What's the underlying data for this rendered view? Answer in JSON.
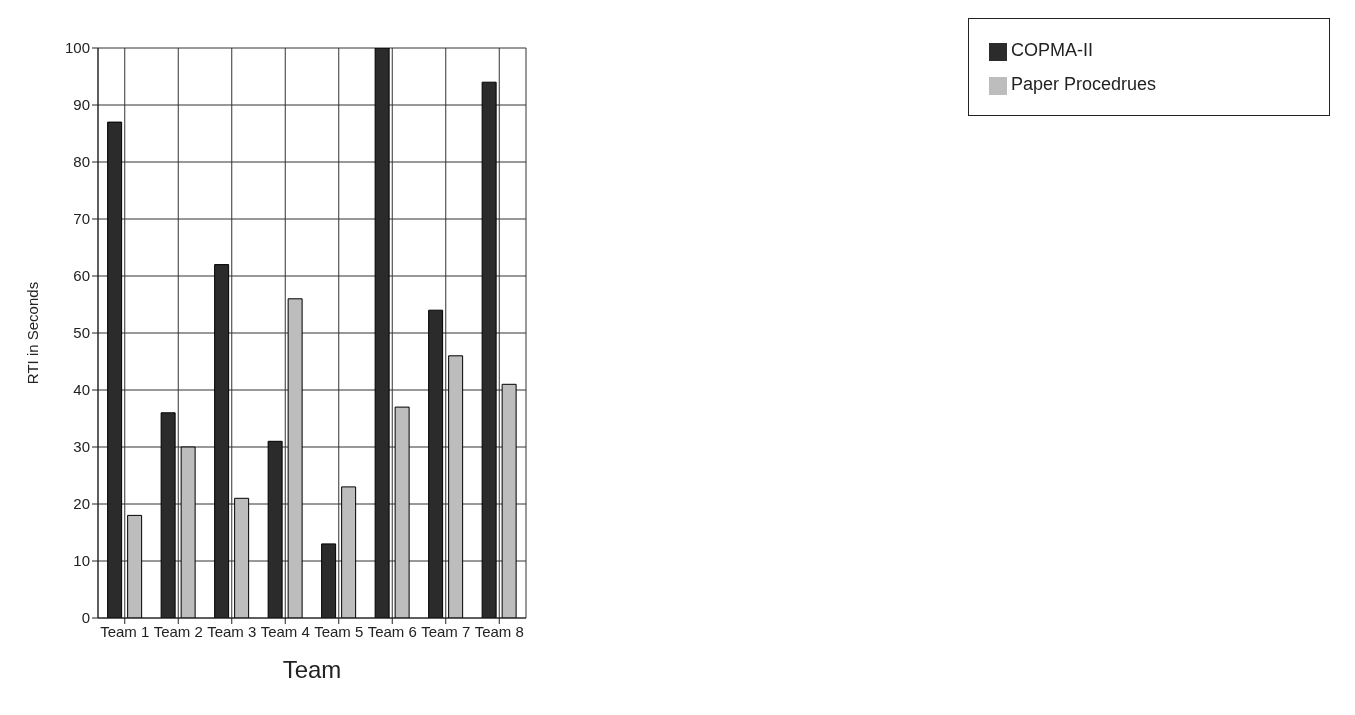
{
  "chart_data": {
    "type": "bar",
    "xlabel": "Team",
    "ylabel": "RTI in Seconds",
    "categories": [
      "Team 1",
      "Team 2",
      "Team 3",
      "Team 4",
      "Team 5",
      "Team 6",
      "Team 7",
      "Team 8"
    ],
    "series": [
      {
        "name": "COPMA-II",
        "color": "#2b2b2b",
        "values": [
          87,
          36,
          62,
          31,
          13,
          100,
          54,
          94
        ]
      },
      {
        "name": "Paper Procedrues",
        "color": "#bdbdbd",
        "values": [
          18,
          30,
          21,
          56,
          23,
          37,
          46,
          41
        ]
      }
    ],
    "ylim": [
      0,
      100
    ],
    "yticks": [
      0,
      10,
      20,
      30,
      40,
      50,
      60,
      70,
      80,
      90,
      100
    ],
    "grid": true,
    "legend": "top right"
  }
}
